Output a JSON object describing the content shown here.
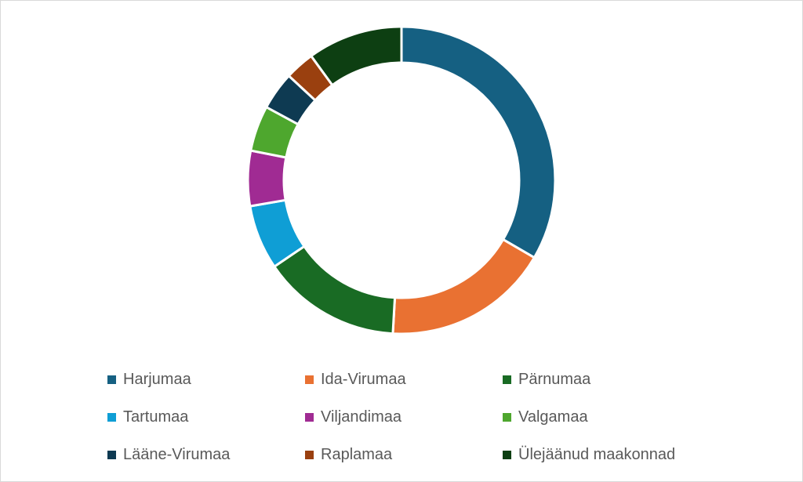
{
  "chart_data": {
    "type": "pie",
    "variant": "donut",
    "categories": [
      "Harjumaa",
      "Ida-Virumaa",
      "Pärnumaa",
      "Tartumaa",
      "Viljandimaa",
      "Valgamaa",
      "Lääne-Virumaa",
      "Raplamaa",
      "Ülejäänud maakonnad"
    ],
    "values": [
      33.4,
      17.5,
      14.6,
      6.8,
      5.8,
      4.8,
      4.0,
      3.1,
      10.0
    ],
    "colors": [
      "#156082",
      "#e97132",
      "#196b24",
      "#0f9ed5",
      "#a02b93",
      "#4ea72e",
      "#0e3a52",
      "#9a400f",
      "#0d3f12"
    ],
    "legend_position": "bottom",
    "title": ""
  }
}
